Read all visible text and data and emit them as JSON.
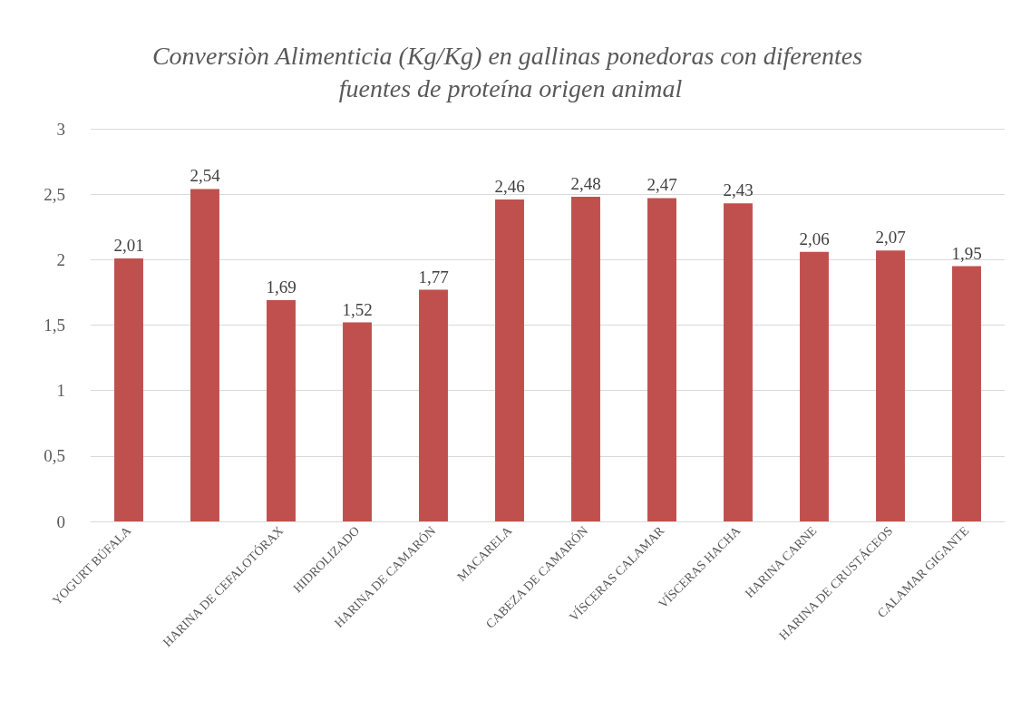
{
  "chart_data": {
    "type": "bar",
    "title": "Conversiòn Alimenticia (Kg/Kg) en gallinas ponedoras con diferentes fuentes de proteína origen animal",
    "categories": [
      "YOGURT BÚFALA",
      null,
      "HARINA DE CEFALOTÓRAX",
      "HIDROLIZADO",
      "HARINA DE CAMARÓN",
      "MACARELA",
      "CABEZA DE CAMARÓN",
      "VÍSCERAS CALAMAR",
      "VÍSCERAS HACHA",
      "HARINA CARNE",
      "HARINA DE CRUSTÁCEOS",
      "CALAMAR GIGANTE"
    ],
    "values": [
      2.01,
      2.54,
      1.69,
      1.52,
      1.77,
      2.46,
      2.48,
      2.47,
      2.43,
      2.06,
      2.07,
      1.95
    ],
    "value_labels": [
      "2,01",
      "2,54",
      "1,69",
      "1,52",
      "1,77",
      "2,46",
      "2,48",
      "2,47",
      "2,43",
      "2,06",
      "2,07",
      "1,95"
    ],
    "color": "#c0504d",
    "ylim": [
      0,
      3
    ],
    "yticks": [
      0,
      {
        "value": 0.5,
        "label": "0,5"
      },
      1,
      {
        "value": 1.5,
        "label": "1,5"
      },
      2,
      {
        "value": 2.5,
        "label": "2,5"
      },
      3
    ],
    "grid": "y"
  }
}
